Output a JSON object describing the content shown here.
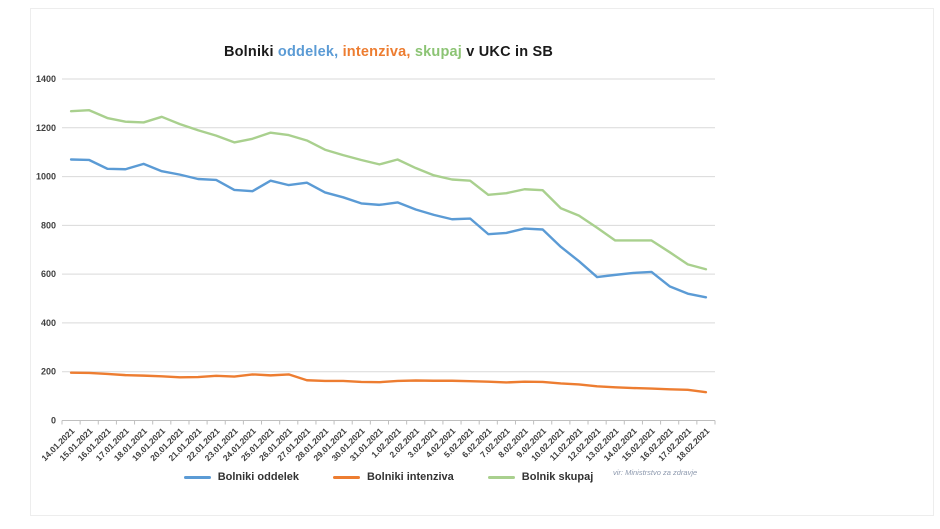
{
  "page": {
    "background": "#ffffff"
  },
  "title": {
    "full": "Bolniki oddelek, intenziva, skupaj v UKC in SB",
    "segments": [
      {
        "text": "Bolniki ",
        "color": "#1a1a1a"
      },
      {
        "text": "oddelek,",
        "color": "#5B9BD5"
      },
      {
        "text": " ",
        "color": "#1a1a1a"
      },
      {
        "text": "intenziva,",
        "color": "#ED7D31"
      },
      {
        "text": " ",
        "color": "#1a1a1a"
      },
      {
        "text": "skupaj",
        "color": "#8CC474"
      },
      {
        "text": " v UKC in SB",
        "color": "#1a1a1a"
      }
    ]
  },
  "source_note": "vir: Ministrstvo za zdravje",
  "legend": {
    "items": [
      {
        "label": "Bolniki oddelek",
        "color": "#5B9BD5"
      },
      {
        "label": "Bolniki intenziva",
        "color": "#ED7D31"
      },
      {
        "label": "Bolnik skupaj",
        "color": "#A9D08E"
      }
    ]
  },
  "chart_data": {
    "type": "line",
    "title": "Bolniki oddelek, intenziva, skupaj v UKC in SB",
    "xlabel": "",
    "ylabel": "",
    "ylim": [
      0,
      1400
    ],
    "yticks": [
      0,
      200,
      400,
      600,
      800,
      1000,
      1200,
      1400
    ],
    "grid": true,
    "legend_position": "bottom",
    "categories": [
      "14.01.2021",
      "15.01.2021",
      "16.01.2021",
      "17.01.2021",
      "18.01.2021",
      "19.01.2021",
      "20.01.2021",
      "21.01.2021",
      "22.01.2021",
      "23.01.2021",
      "24.01.2021",
      "25.01.2021",
      "26.01.2021",
      "27.01.2021",
      "28.01.2021",
      "29.01.2021",
      "30.01.2021",
      "31.01.2021",
      "1.02.2021",
      "2.02.2021",
      "3.02.2021",
      "4.02.2021",
      "5.02.2021",
      "6.02.2021",
      "7.02.2021",
      "8.02.2021",
      "9.02.2021",
      "10.02.2021",
      "11.02.2021",
      "12.02.2021",
      "13.02.2021",
      "14.02.2021",
      "15.02.2021",
      "16.02.2021",
      "17.02.2021",
      "18.02.2021"
    ],
    "series": [
      {
        "name": "Bolniki oddelek",
        "color": "#5B9BD5",
        "values": [
          1070,
          1068,
          1032,
          1030,
          1052,
          1022,
          1008,
          990,
          986,
          945,
          940,
          983,
          965,
          975,
          935,
          915,
          890,
          884,
          894,
          865,
          843,
          825,
          828,
          764,
          769,
          787,
          783,
          712,
          653,
          588,
          597,
          605,
          609,
          550,
          520,
          505
        ]
      },
      {
        "name": "Bolniki intenziva",
        "color": "#ED7D31",
        "values": [
          196,
          195,
          191,
          186,
          184,
          181,
          177,
          178,
          183,
          180,
          189,
          185,
          189,
          165,
          162,
          162,
          158,
          157,
          162,
          164,
          163,
          163,
          161,
          159,
          156,
          159,
          158,
          152,
          148,
          140,
          136,
          133,
          131,
          128,
          126,
          116
        ]
      },
      {
        "name": "Bolnik skupaj",
        "color": "#A9D08E",
        "values": [
          1268,
          1272,
          1240,
          1225,
          1222,
          1245,
          1215,
          1190,
          1168,
          1140,
          1155,
          1180,
          1170,
          1148,
          1110,
          1088,
          1068,
          1050,
          1070,
          1035,
          1005,
          988,
          983,
          925,
          932,
          948,
          944,
          870,
          840,
          790,
          738,
          738,
          738,
          690,
          640,
          620
        ]
      }
    ]
  }
}
